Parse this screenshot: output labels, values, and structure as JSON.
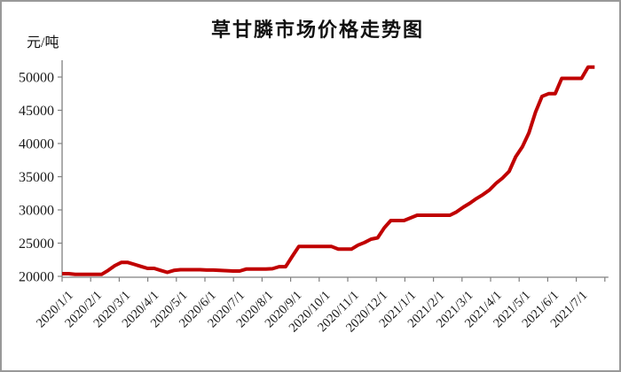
{
  "chart_data": {
    "type": "line",
    "title": "草甘膦市场价格走势图",
    "ylabel": "元/吨",
    "xlabel": "",
    "legend": "none",
    "grid": false,
    "ylim": [
      20000,
      52000
    ],
    "y_ticks": [
      20000,
      25000,
      30000,
      35000,
      40000,
      45000,
      50000
    ],
    "x_tick_labels": [
      "2020/1/1",
      "2020/2/1",
      "2020/3/1",
      "2020/4/1",
      "2020/5/1",
      "2020/6/1",
      "2020/7/1",
      "2020/8/1",
      "2020/9/1",
      "2020/10/1",
      "2020/11/1",
      "2020/12/1",
      "2021/1/1",
      "2021/2/1",
      "2021/3/1",
      "2021/4/1",
      "2021/5/1",
      "2021/6/1",
      "2021/7/1"
    ],
    "line_color": "#c00000",
    "axis_color": "#808080",
    "text_color": "#1a1a1a",
    "series": [
      {
        "name": "草甘膦市场价格",
        "interval": "weekly",
        "start": "2020/1/1",
        "values": [
          20400,
          20400,
          20300,
          20300,
          20300,
          20300,
          20300,
          20900,
          21600,
          22100,
          22100,
          21800,
          21500,
          21200,
          21200,
          20900,
          20600,
          20900,
          21000,
          21000,
          21000,
          21000,
          20950,
          20950,
          20900,
          20850,
          20800,
          20800,
          21100,
          21100,
          21100,
          21100,
          21150,
          21450,
          21450,
          23000,
          24500,
          24500,
          24500,
          24500,
          24500,
          24500,
          24100,
          24100,
          24100,
          24700,
          25100,
          25600,
          25800,
          27300,
          28400,
          28400,
          28400,
          28800,
          29200,
          29200,
          29200,
          29200,
          29200,
          29200,
          29700,
          30400,
          31000,
          31700,
          32300,
          33000,
          34000,
          34800,
          35800,
          38000,
          39500,
          41600,
          44700,
          47100,
          47500,
          47500,
          49800,
          49800,
          49800,
          49800,
          51500,
          51500
        ]
      }
    ]
  }
}
